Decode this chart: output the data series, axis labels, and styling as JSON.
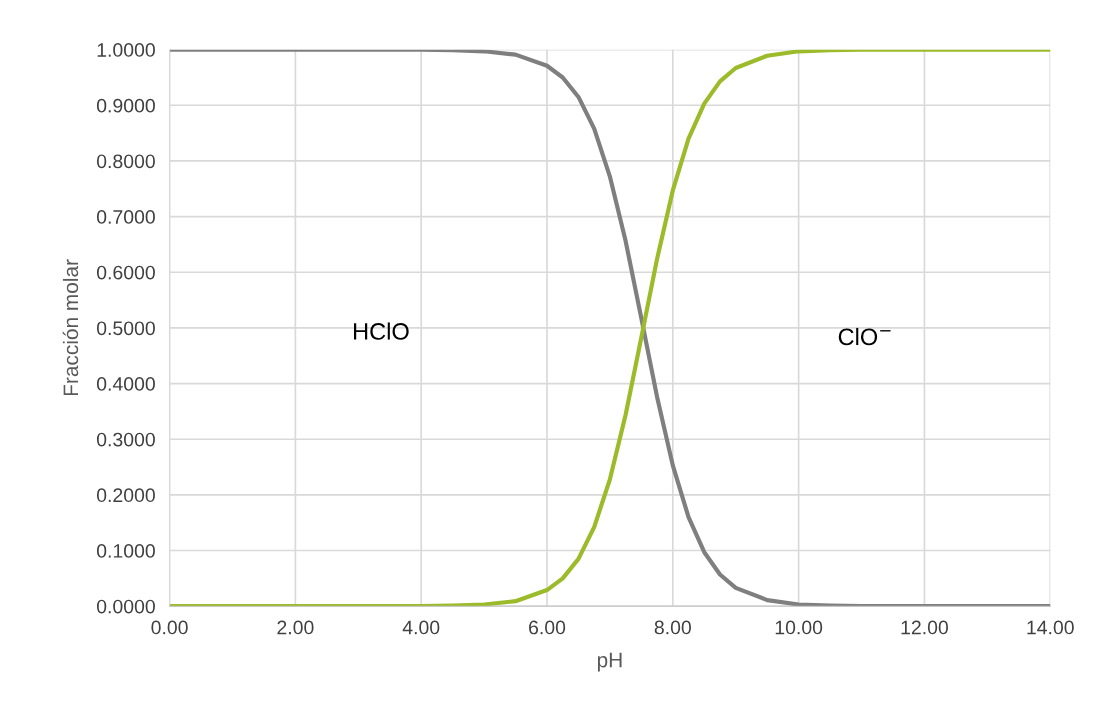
{
  "chart_data": {
    "type": "line",
    "xlabel": "pH",
    "ylabel": "Fracción molar",
    "xlim": [
      0,
      14
    ],
    "ylim": [
      0,
      1
    ],
    "xticks": [
      {
        "value": 0,
        "label": "0.00"
      },
      {
        "value": 2,
        "label": "2.00"
      },
      {
        "value": 4,
        "label": "4.00"
      },
      {
        "value": 6,
        "label": "6.00"
      },
      {
        "value": 8,
        "label": "8.00"
      },
      {
        "value": 10,
        "label": "10.00"
      },
      {
        "value": 12,
        "label": "12.00"
      },
      {
        "value": 14,
        "label": "14.00"
      }
    ],
    "yticks": [
      {
        "value": 0,
        "label": "0.0000"
      },
      {
        "value": 0.1,
        "label": "0.1000"
      },
      {
        "value": 0.2,
        "label": "0.2000"
      },
      {
        "value": 0.3,
        "label": "0.3000"
      },
      {
        "value": 0.4,
        "label": "0.4000"
      },
      {
        "value": 0.5,
        "label": "0.5000"
      },
      {
        "value": 0.6,
        "label": "0.6000"
      },
      {
        "value": 0.7,
        "label": "0.7000"
      },
      {
        "value": 0.8,
        "label": "0.8000"
      },
      {
        "value": 0.9,
        "label": "0.9000"
      },
      {
        "value": 1,
        "label": "1.0000"
      }
    ],
    "annotations": [
      "HClO",
      "ClO$^{−}$"
    ],
    "grid": true,
    "legend": false,
    "marker": "none",
    "line_style": "solid",
    "x": [
      0,
      1,
      2,
      3,
      4,
      4.5,
      5,
      5.5,
      6,
      6.25,
      6.5,
      6.75,
      7,
      7.25,
      7.5,
      7.75,
      8,
      8.25,
      8.5,
      8.75,
      9,
      9.5,
      10,
      10.5,
      11,
      12,
      13,
      14
    ],
    "series": [
      {
        "color": "#7f7f7f",
        "values": [
          1,
          1,
          1,
          1,
          1,
          0.999,
          0.997,
          0.991,
          0.971,
          0.95,
          0.915,
          0.858,
          0.772,
          0.656,
          0.517,
          0.376,
          0.253,
          0.16,
          0.097,
          0.057,
          0.033,
          0.011,
          0.003,
          0.001,
          0,
          0,
          0,
          0
        ]
      },
      {
        "color": "#9bbb2a",
        "values": [
          0,
          0,
          0,
          0,
          0,
          0.001,
          0.003,
          0.009,
          0.029,
          0.05,
          0.085,
          0.142,
          0.228,
          0.344,
          0.483,
          0.624,
          0.747,
          0.84,
          0.903,
          0.943,
          0.967,
          0.989,
          0.997,
          0.999,
          1,
          1,
          1,
          1
        ]
      }
    ]
  }
}
